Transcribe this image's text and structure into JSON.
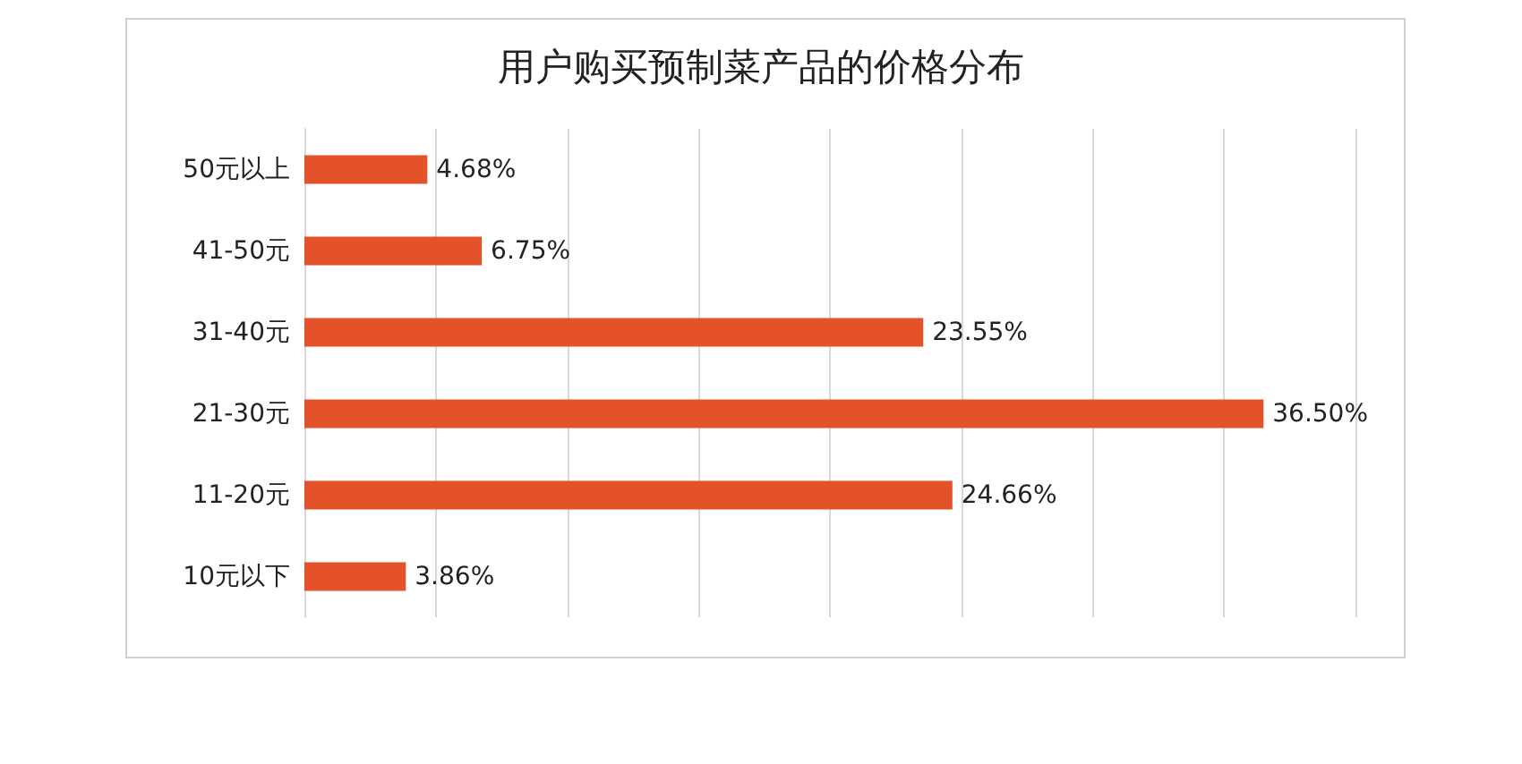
{
  "chart_data": {
    "type": "bar",
    "title": "用户购买预制菜产品的价格分布",
    "orientation": "horizontal",
    "categories": [
      "50元以上",
      "41-50元",
      "31-40元",
      "21-30元",
      "11-20元",
      "10元以下"
    ],
    "values": [
      4.68,
      6.75,
      23.55,
      36.5,
      24.66,
      3.86
    ],
    "value_labels": [
      "4.68%",
      "6.75%",
      "23.55%",
      "36.50%",
      "24.66%",
      "3.86%"
    ],
    "color": "#e4522a",
    "grid": "x",
    "tick_labels": "y"
  }
}
